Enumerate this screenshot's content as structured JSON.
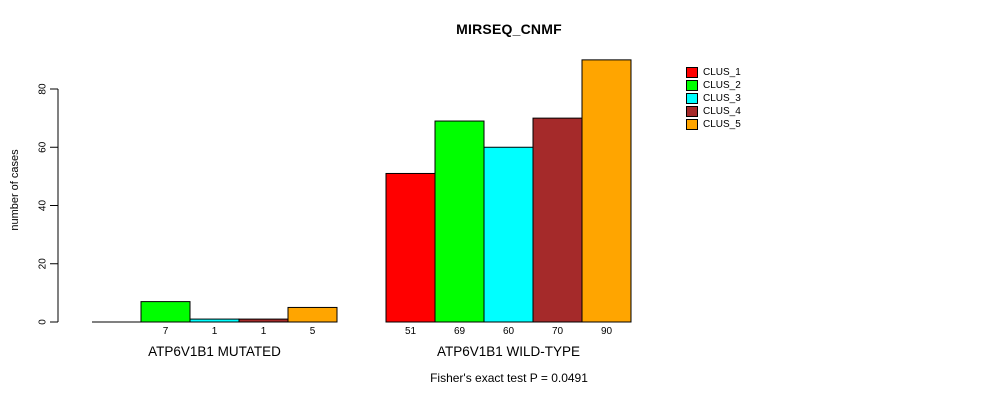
{
  "title": "MIRSEQ_CNMF",
  "footer_note": "Fisher's exact test P = 0.0491",
  "y_axis_label": "number of cases",
  "chart_data": {
    "type": "bar",
    "title": "MIRSEQ_CNMF",
    "xlabel": "",
    "ylabel": "number of cases",
    "ylim": [
      0,
      90
    ],
    "y_ticks": [
      0,
      20,
      40,
      60,
      80
    ],
    "grid": false,
    "legend_position": "right",
    "series_names": [
      "CLUS_1",
      "CLUS_2",
      "CLUS_3",
      "CLUS_4",
      "CLUS_5"
    ],
    "colors": [
      "#FF0000",
      "#00FF00",
      "#00FFFF",
      "#A52A2A",
      "#FFA500"
    ],
    "groups": [
      {
        "label": "ATP6V1B1 MUTATED",
        "values": [
          0,
          7,
          1,
          1,
          5
        ],
        "bar_labels": [
          "",
          "7",
          "1",
          "1",
          "5"
        ]
      },
      {
        "label": "ATP6V1B1 WILD-TYPE",
        "values": [
          51,
          69,
          60,
          70,
          90
        ],
        "bar_labels": [
          "51",
          "69",
          "60",
          "70",
          "90"
        ]
      }
    ],
    "annotation": "Fisher's exact test P = 0.0491",
    "bar_border_color": "#000000",
    "axis_color": "#000000"
  }
}
